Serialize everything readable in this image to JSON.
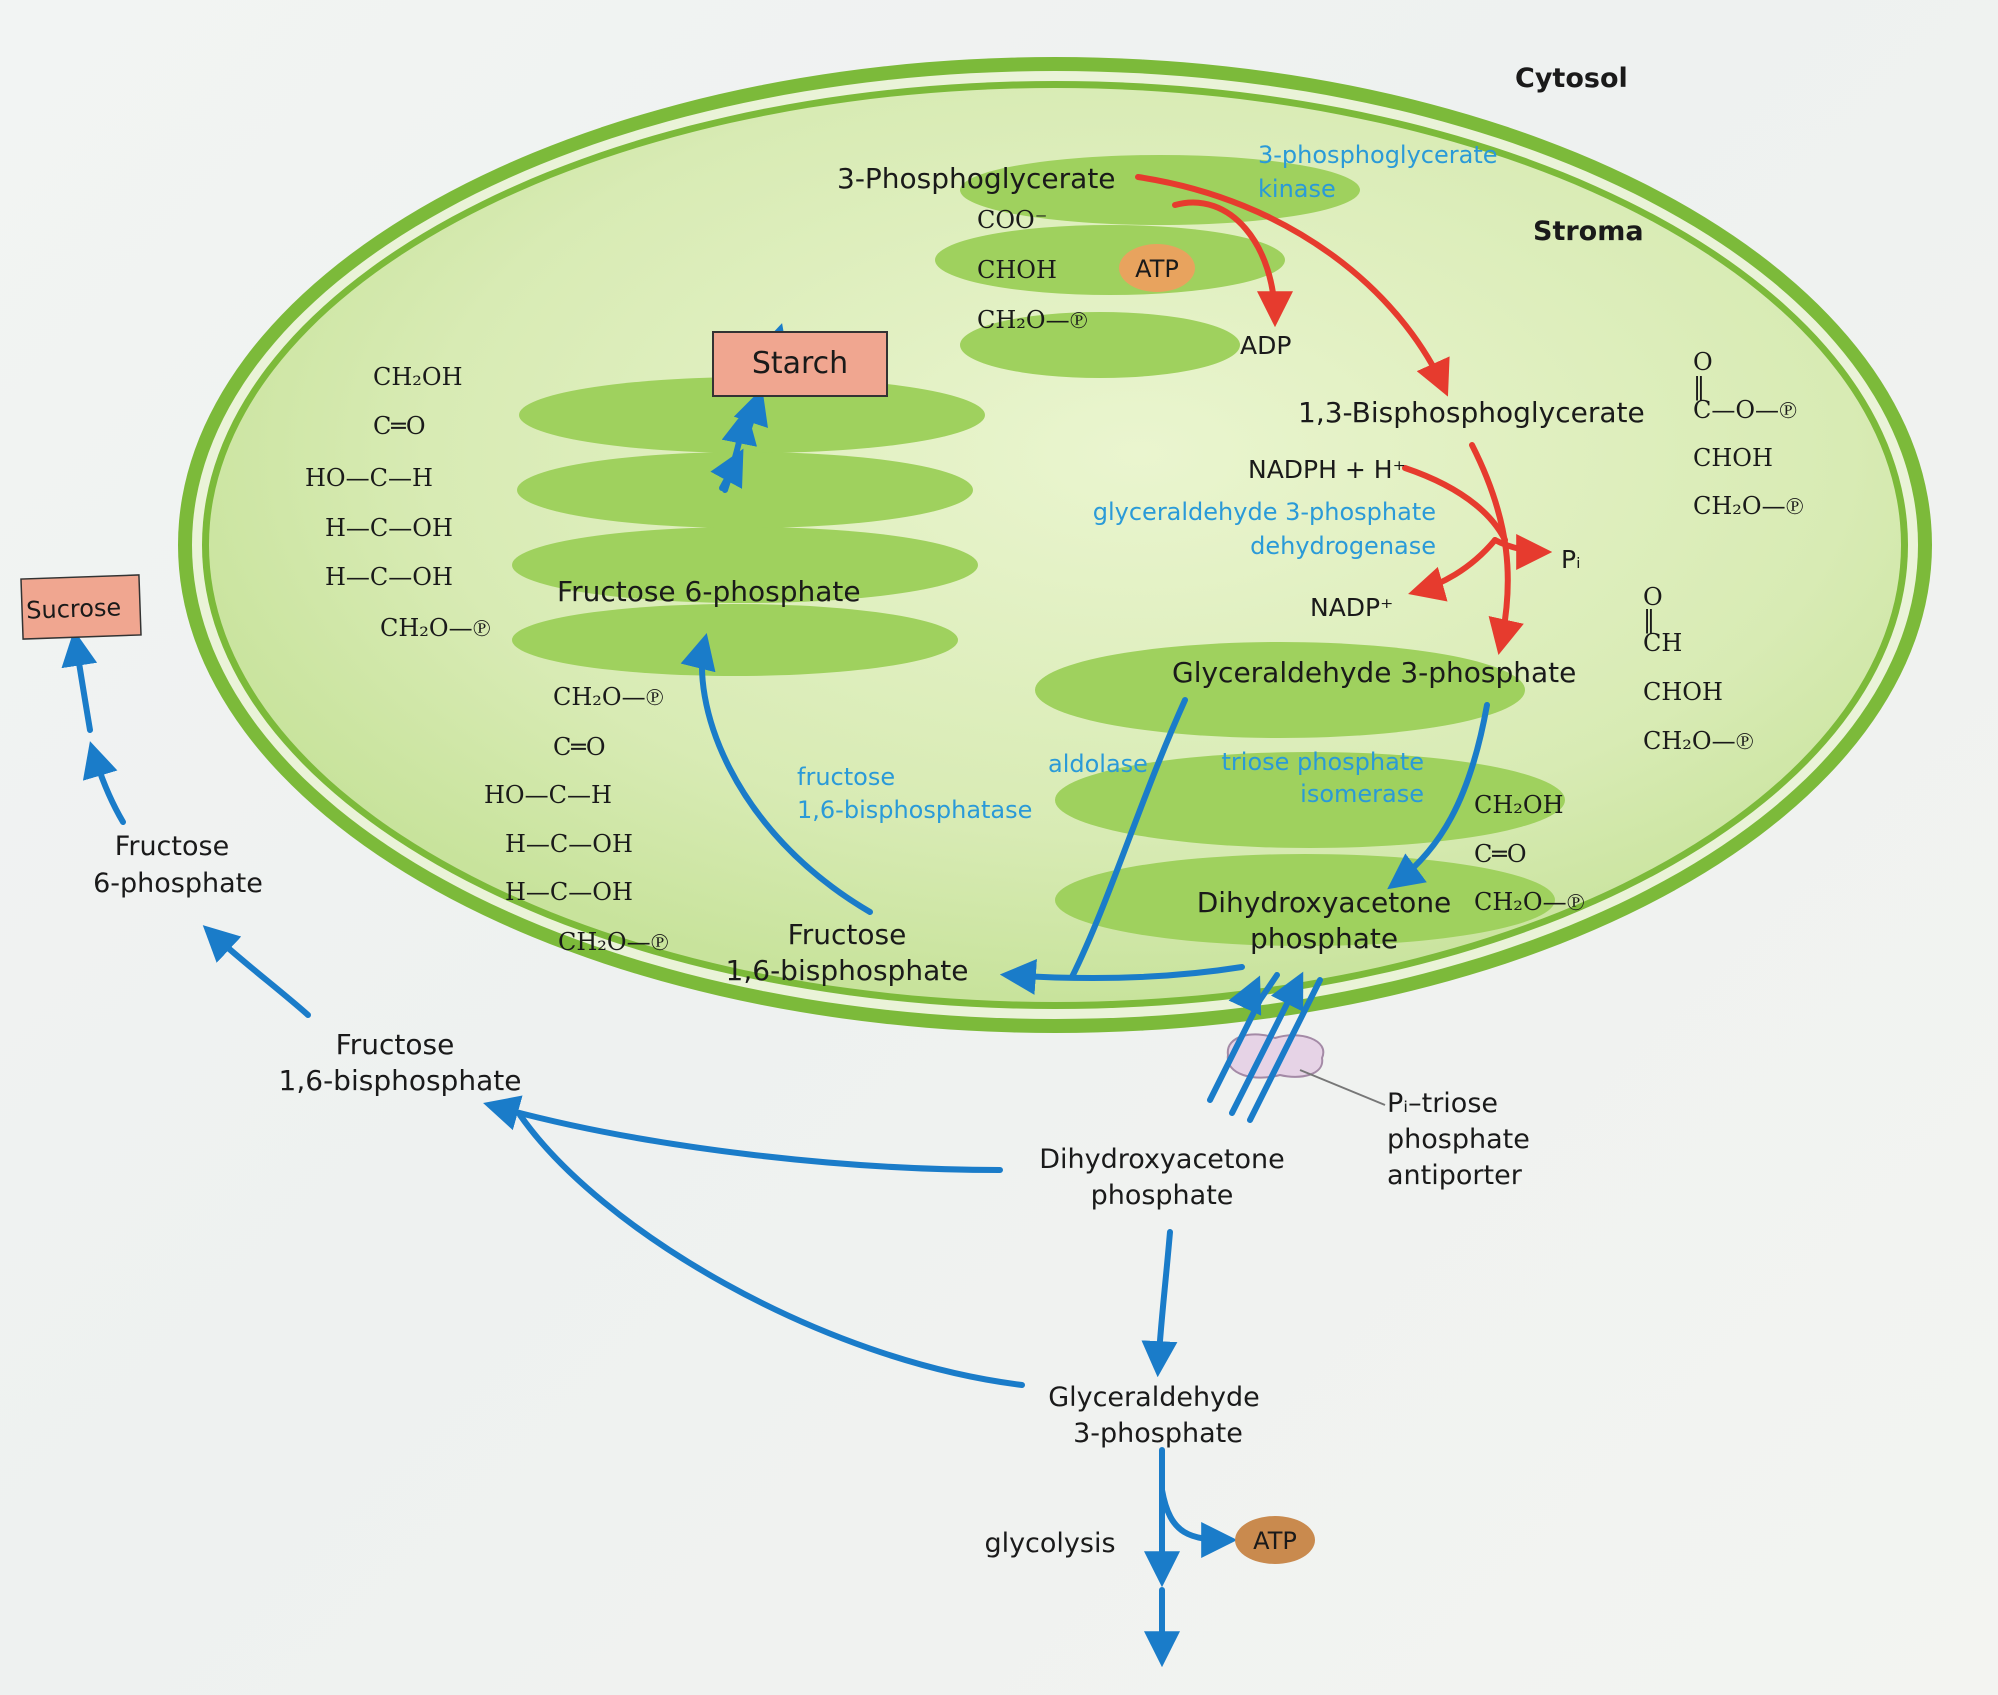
{
  "compartments": {
    "cytosol": "Cytosol",
    "stroma": "Stroma"
  },
  "stroma": {
    "phosphoglycerate": "3-Phosphoglycerate",
    "pgk_line1": "3-phosphoglycerate",
    "pgk_line2": "kinase",
    "atp": "ATP",
    "adp": "ADP",
    "bisphosphoglycerate": "1,3-Bisphosphoglycerate",
    "nadph": "NADPH + H⁺",
    "gapdh_line1": "glyceraldehyde 3-phosphate",
    "gapdh_line2": "dehydrogenase",
    "pi": "Pᵢ",
    "nadp": "NADP⁺",
    "gap": "Glyceraldehyde 3-phosphate",
    "aldolase": "aldolase",
    "tpi_line1": "triose phosphate",
    "tpi_line2": "isomerase",
    "dhap_line1": "Dihydroxyacetone",
    "dhap_line2": "phosphate",
    "fbp_line1": "Fructose",
    "fbp_line2": "1,6-bisphosphate",
    "fbpase_line1": "fructose",
    "fbpase_line2": "1,6-bisphosphatase",
    "f6p": "Fructose 6-phosphate",
    "starch": "Starch"
  },
  "cytosol": {
    "sucrose": "Sucrose",
    "f6p_line1": "Fructose",
    "f6p_line2": "6-phosphate",
    "fbp_line1": "Fructose",
    "fbp_line2": "1,6-bisphosphate",
    "dhap_line1": "Dihydroxyacetone",
    "dhap_line2": "phosphate",
    "gap_line1": "Glyceraldehyde",
    "gap_line2": "3-phosphate",
    "glycolysis": "glycolysis",
    "atp": "ATP"
  },
  "antiporter": {
    "line1": "Pᵢ–triose",
    "line2": "phosphate",
    "line3": "antiporter"
  },
  "structures": {
    "pg": [
      "COO⁻",
      "CHOH",
      "CH₂O—℗"
    ],
    "bpg": [
      "O",
      "‖",
      "C—O—℗",
      "CHOH",
      "CH₂O—℗"
    ],
    "gap": [
      "O",
      "‖",
      "CH",
      "CHOH",
      "CH₂O—℗"
    ],
    "dhap": [
      "CH₂OH",
      "C═O",
      "CH₂O—℗"
    ],
    "f6p": [
      "CH₂OH",
      "C═O",
      "HO—C—H",
      "H—C—OH",
      "H—C—OH",
      "CH₂O—℗"
    ],
    "fbp": [
      "CH₂O—℗",
      "C═O",
      "HO—C—H",
      "H—C—OH",
      "H—C—OH",
      "CH₂O—℗"
    ]
  },
  "colors": {
    "blue_arrow": "#1a7cc9",
    "red_arrow": "#e63b2e",
    "enzyme_text": "#2a9ad8",
    "membrane": "#7cba3a",
    "stroma_fill": "#dfeec0",
    "thylakoid": "#9fd15e",
    "product_box": "#f0a690",
    "atp_fill": "#e8a35e",
    "transporter": "#e6d3e6"
  }
}
